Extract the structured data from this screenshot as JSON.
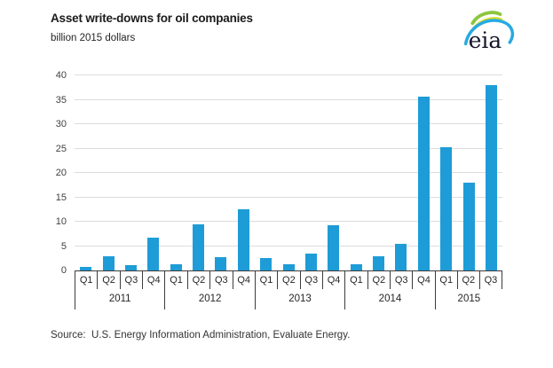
{
  "header": {
    "title": "Asset write-downs for oil companies",
    "subtitle": "billion 2015 dollars",
    "logo_text": "eia"
  },
  "source": {
    "text": "Source:  U.S. Energy Information Administration, Evaluate Energy."
  },
  "colors": {
    "bar": "#1E9CD7",
    "gridline": "#DCDCDC",
    "axis": "#3C3C3C",
    "logo_green": "#8CC63F",
    "logo_yellow": "#D7DF23",
    "logo_blue": "#27AAE1"
  },
  "chart_data": {
    "type": "bar",
    "title": "Asset write-downs for oil companies",
    "subtitle": "billion 2015 dollars",
    "xlabel": "",
    "ylabel": "billion 2015 dollars",
    "ylim": [
      0,
      40
    ],
    "ytick_step": 5,
    "grid": "horizontal",
    "legend": "none",
    "bar_color": "#1E9CD7",
    "categories": [
      "2011 Q1",
      "2011 Q2",
      "2011 Q3",
      "2011 Q4",
      "2012 Q1",
      "2012 Q2",
      "2012 Q3",
      "2012 Q4",
      "2013 Q1",
      "2013 Q2",
      "2013 Q3",
      "2013 Q4",
      "2014 Q1",
      "2014 Q2",
      "2014 Q3",
      "2014 Q4",
      "2015 Q1",
      "2015 Q2",
      "2015 Q3"
    ],
    "values": [
      0.8,
      3.0,
      1.1,
      6.8,
      1.3,
      9.5,
      2.8,
      12.6,
      2.5,
      1.3,
      3.5,
      9.2,
      1.2,
      3.0,
      5.5,
      35.6,
      25.2,
      18.0,
      38.0
    ],
    "groups": [
      {
        "year": "2011",
        "quarters": [
          "Q1",
          "Q2",
          "Q3",
          "Q4"
        ],
        "values": [
          0.8,
          3.0,
          1.1,
          6.8
        ]
      },
      {
        "year": "2012",
        "quarters": [
          "Q1",
          "Q2",
          "Q3",
          "Q4"
        ],
        "values": [
          1.3,
          9.5,
          2.8,
          12.6
        ]
      },
      {
        "year": "2013",
        "quarters": [
          "Q1",
          "Q2",
          "Q3",
          "Q4"
        ],
        "values": [
          2.5,
          1.3,
          3.5,
          9.2
        ]
      },
      {
        "year": "2014",
        "quarters": [
          "Q1",
          "Q2",
          "Q3",
          "Q4"
        ],
        "values": [
          1.2,
          3.0,
          5.5,
          35.6
        ]
      },
      {
        "year": "2015",
        "quarters": [
          "Q1",
          "Q2",
          "Q3"
        ],
        "values": [
          25.2,
          18.0,
          38.0
        ]
      }
    ]
  }
}
